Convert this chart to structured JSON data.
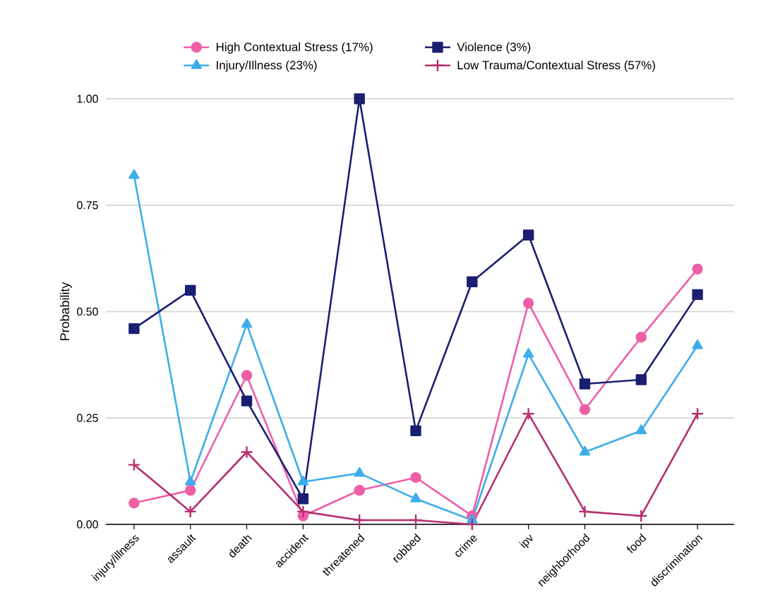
{
  "chart_data": {
    "type": "line",
    "ylabel": "Probability",
    "categories": [
      "injury/illness",
      "assault",
      "death",
      "accident",
      "threatened",
      "robbed",
      "crime",
      "ipv",
      "neighborhood",
      "food",
      "discrimination"
    ],
    "series": [
      {
        "name": "High Contextual Stress (17%)",
        "color": "#ee5fa7",
        "marker": "circle",
        "values": [
          0.05,
          0.08,
          0.35,
          0.02,
          0.08,
          0.11,
          0.02,
          0.52,
          0.27,
          0.44,
          0.6
        ]
      },
      {
        "name": "Injury/Illness (23%)",
        "color": "#3daee9",
        "marker": "triangle",
        "values": [
          0.82,
          0.1,
          0.47,
          0.1,
          0.12,
          0.06,
          0.01,
          0.4,
          0.17,
          0.22,
          0.42
        ]
      },
      {
        "name": "Violence (3%)",
        "color": "#1a1f71",
        "marker": "square",
        "values": [
          0.46,
          0.55,
          0.29,
          0.06,
          1.0,
          0.22,
          0.57,
          0.68,
          0.33,
          0.34,
          0.54
        ]
      },
      {
        "name": "Low Trauma/Contextual Stress (57%)",
        "color": "#b5306f",
        "marker": "cross",
        "values": [
          0.14,
          0.03,
          0.17,
          0.03,
          0.01,
          0.01,
          0.0,
          0.26,
          0.03,
          0.02,
          0.26
        ]
      }
    ],
    "ylim": [
      0,
      1
    ],
    "yticks": [
      {
        "value": 0,
        "label": "0.00"
      },
      {
        "value": 0.25,
        "label": "0.25"
      },
      {
        "value": 0.5,
        "label": "0.50"
      },
      {
        "value": 0.75,
        "label": "0.75"
      },
      {
        "value": 1,
        "label": "1.00"
      }
    ],
    "grid": "y",
    "legend": "top",
    "line_style": "solid"
  }
}
